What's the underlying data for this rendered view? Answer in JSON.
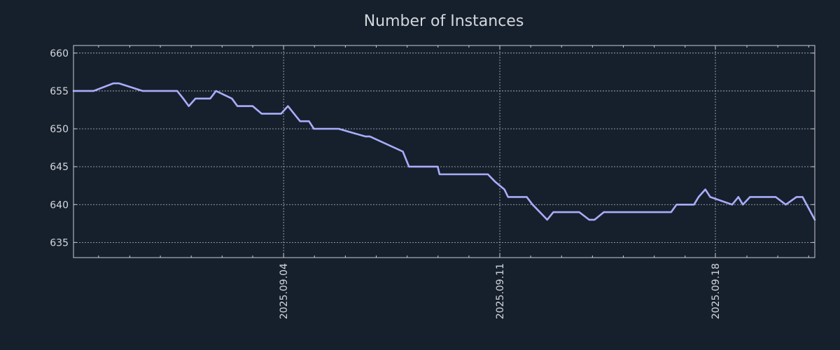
{
  "chart_data": {
    "type": "line",
    "title": "Number of Instances",
    "xlabel": "",
    "ylabel": "",
    "xlim": [
      -0.24,
      24.0
    ],
    "ylim": [
      633,
      661
    ],
    "y_ticks": [
      635,
      640,
      645,
      650,
      655,
      660
    ],
    "x_ticks": [
      {
        "value": 6.63,
        "label": "2025.09.04"
      },
      {
        "value": 13.7,
        "label": "2025.09.11"
      },
      {
        "value": 20.75,
        "label": "2025.09.18"
      }
    ],
    "x_minor_ticks": [
      0.58,
      1.6,
      2.6,
      3.61,
      4.62,
      5.62,
      7.64,
      8.65,
      9.66,
      10.67,
      11.68,
      12.69,
      14.71,
      15.72,
      16.73,
      17.74,
      18.75,
      19.76,
      21.78,
      22.79,
      23.8
    ],
    "grid": true,
    "colors": {
      "background": "#16202d",
      "series": "#a9adfa"
    },
    "series": [
      {
        "name": "Number of Instances",
        "color": "#a9adfa",
        "x": [
          -0.24,
          0.26,
          0.42,
          1.06,
          1.25,
          2.02,
          2.33,
          2.5,
          2.85,
          3.15,
          3.35,
          3.53,
          3.75,
          3.98,
          4.23,
          4.42,
          4.94,
          5.12,
          5.62,
          5.91,
          6.55,
          6.77,
          7.17,
          7.46,
          7.62,
          8.43,
          9.3,
          9.45,
          10.53,
          10.73,
          10.98,
          11.14,
          11.53,
          11.67,
          11.73,
          13.31,
          13.55,
          13.85,
          13.97,
          14.58,
          14.77,
          15.25,
          15.45,
          15.67,
          15.88,
          16.1,
          16.3,
          16.62,
          16.8,
          17.1,
          17.25,
          17.45,
          17.63,
          19.3,
          19.48,
          19.7,
          20.05,
          20.2,
          20.42,
          20.58,
          21.3,
          21.5,
          21.65,
          21.88,
          22.72,
          23.05,
          23.4,
          23.6,
          24.0
        ],
        "y": [
          655,
          655,
          655,
          656,
          656,
          655,
          655,
          655,
          655,
          655,
          654,
          653,
          654,
          654,
          654,
          655,
          654,
          653,
          653,
          652,
          652,
          653,
          651,
          651,
          650,
          650,
          649,
          649,
          647,
          645,
          645,
          645,
          645,
          645,
          644,
          644,
          643,
          642,
          641,
          641,
          640,
          638,
          639,
          639,
          639,
          639,
          639,
          638,
          638,
          639,
          639,
          639,
          639,
          639,
          640,
          640,
          640,
          641,
          642,
          641,
          640,
          641,
          640,
          641,
          641,
          640,
          641,
          641,
          638
        ]
      }
    ]
  }
}
